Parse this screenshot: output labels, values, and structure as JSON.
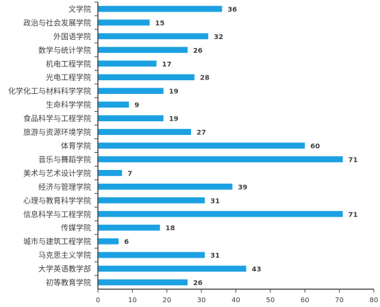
{
  "chart_data": {
    "type": "bar",
    "orientation": "horizontal",
    "categories": [
      "文学院",
      "政治与社会发展学院",
      "外国语学院",
      "数学与统计学院",
      "机电工程学院",
      "光电工程学院",
      "化学化工与材料科学学院",
      "生命科学学院",
      "食品科学与工程学院",
      "旅游与资源环境学院",
      "体育学院",
      "音乐与舞蹈学院",
      "美术与艺术设计学院",
      "经济与管理学院",
      "心理与教育科学学院",
      "信息科学与工程学院",
      "传媒学院",
      "城市与建筑工程学院",
      "马克思主义学院",
      "大学英语教学部",
      "初等教育学院"
    ],
    "values": [
      36,
      15,
      32,
      26,
      17,
      28,
      19,
      9,
      19,
      27,
      60,
      71,
      7,
      39,
      31,
      71,
      18,
      6,
      31,
      43,
      26
    ],
    "xticks": [
      "0",
      "10",
      "20",
      "30",
      "40",
      "50",
      "60",
      "70",
      "80"
    ],
    "xlim": [
      0,
      80
    ],
    "grid": false,
    "legend": "none",
    "bar_color": "#1BA1E2",
    "axis_color": "#404040"
  }
}
